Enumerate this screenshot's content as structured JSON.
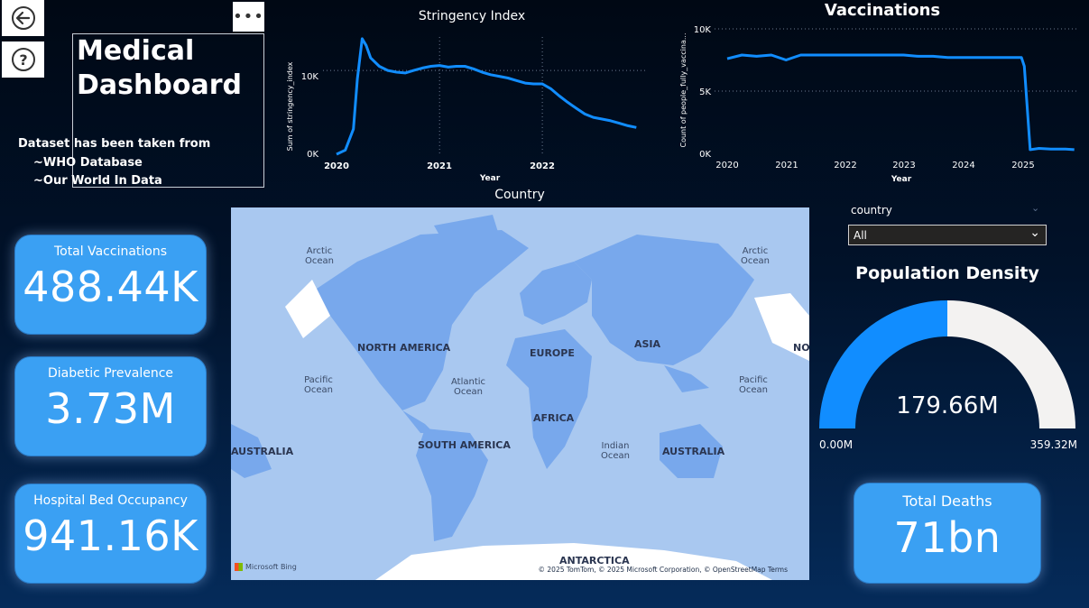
{
  "nav": {
    "back_icon": "back-arrow-icon",
    "help_icon": "question-icon",
    "more_label": "•••"
  },
  "header": {
    "title_line1": "Medical",
    "title_line2": "Dashboard",
    "source_line1": "Dataset has been taken from",
    "source_line2": "~WHO Database",
    "source_line3": "~Our World In Data"
  },
  "stringency_chart": {
    "title": "Stringency Index",
    "ylabel": "Sum of stringency_index",
    "xlabel": "Year",
    "yticks": [
      "10K",
      "0K"
    ],
    "xticks": [
      "2020",
      "2021",
      "2022"
    ]
  },
  "vaccinations_chart": {
    "title": "Vaccinations",
    "ylabel": "Count of people_fully_vaccina...",
    "xlabel": "Year",
    "yticks": [
      "10K",
      "5K",
      "0K"
    ],
    "xticks": [
      "2020",
      "2021",
      "2022",
      "2023",
      "2024",
      "2025"
    ]
  },
  "kpis": {
    "total_vaccinations": {
      "label": "Total Vaccinations",
      "value": "488.44K"
    },
    "diabetic_prevalence": {
      "label": "Diabetic Prevalence",
      "value": "3.73M"
    },
    "hospital_bed": {
      "label": "Hospital Bed Occupancy",
      "value": "941.16K"
    },
    "total_deaths": {
      "label": "Total Deaths",
      "value": "71bn"
    }
  },
  "map": {
    "title": "Country",
    "labels": {
      "arctic_l": "Arctic\nOcean",
      "arctic_r": "Arctic\nOcean",
      "pacific_l": "Pacific\nOcean",
      "pacific_r": "Pacific\nOcean",
      "atlantic": "Atlantic\nOcean",
      "indian": "Indian\nOcean",
      "north_america": "NORTH AMERICA",
      "south_america": "SOUTH AMERICA",
      "europe": "EUROPE",
      "asia": "ASIA",
      "africa": "AFRICA",
      "australia": "AUSTRALIA",
      "australia_l": "AUSTRALIA",
      "antarctica": "ANTARCTICA",
      "no": "NO"
    },
    "attribution": "© 2025 TomTom, © 2025 Microsoft Corporation, © OpenStreetMap  Terms",
    "bing": "Microsoft Bing"
  },
  "slicer": {
    "label": "country",
    "selected": "All"
  },
  "gauge": {
    "title": "Population Density",
    "value_label": "179.66M",
    "min_label": "0.00M",
    "max_label": "359.32M",
    "value": 179.66,
    "min": 0,
    "max": 359.32,
    "fill_color": "#118dff",
    "track_color": "#f3f2f1"
  },
  "chart_data": [
    {
      "type": "line",
      "title": "Stringency Index",
      "xlabel": "Year",
      "ylabel": "Sum of stringency_index",
      "ylim": [
        0,
        14000
      ],
      "series": [
        {
          "x": [
            "2020-01-01",
            "2020-02-01",
            "2020-03-01",
            "2020-03-15",
            "2020-04-01",
            "2020-04-15",
            "2020-05-01",
            "2020-06-01",
            "2020-07-01",
            "2020-08-01",
            "2020-09-01",
            "2020-10-01",
            "2020-11-01",
            "2020-12-01",
            "2021-01-01",
            "2021-02-01",
            "2021-03-01",
            "2021-04-01",
            "2021-05-01",
            "2021-06-01",
            "2021-07-01",
            "2021-08-01",
            "2021-09-01",
            "2021-10-01",
            "2021-11-01",
            "2021-12-01",
            "2022-01-01",
            "2022-02-01",
            "2022-03-01",
            "2022-04-01",
            "2022-05-01",
            "2022-06-01",
            "2022-07-01",
            "2022-08-01",
            "2022-09-01",
            "2022-10-01",
            "2022-11-01",
            "2022-12-01"
          ],
          "values": [
            0,
            500,
            3000,
            9000,
            13800,
            13000,
            11500,
            10500,
            10000,
            9800,
            9700,
            10000,
            10300,
            10500,
            10600,
            10400,
            10500,
            10500,
            10200,
            9800,
            9500,
            9300,
            9100,
            8800,
            8500,
            8400,
            8400,
            7800,
            7000,
            6200,
            5500,
            4800,
            4400,
            4200,
            4000,
            3700,
            3400,
            3200
          ]
        }
      ]
    },
    {
      "type": "line",
      "title": "Vaccinations",
      "xlabel": "Year",
      "ylabel": "Count of people_fully_vaccina...",
      "ylim": [
        0,
        10000
      ],
      "series": [
        {
          "x": [
            "2020",
            "2020.25",
            "2020.5",
            "2020.75",
            "2021",
            "2021.25",
            "2021.5",
            "2021.75",
            "2022",
            "2022.25",
            "2022.5",
            "2022.75",
            "2023",
            "2023.25",
            "2023.5",
            "2023.75",
            "2024",
            "2024.25",
            "2024.5",
            "2024.75",
            "2025",
            "2025.05",
            "2025.15",
            "2025.3",
            "2025.5",
            "2025.75",
            "2025.9"
          ],
          "values": [
            7600,
            7900,
            7800,
            7900,
            7500,
            7900,
            7900,
            7900,
            7900,
            7900,
            7900,
            7900,
            7900,
            7800,
            7800,
            7700,
            7700,
            7700,
            7700,
            7700,
            7700,
            7000,
            300,
            400,
            350,
            350,
            300
          ]
        }
      ]
    }
  ]
}
